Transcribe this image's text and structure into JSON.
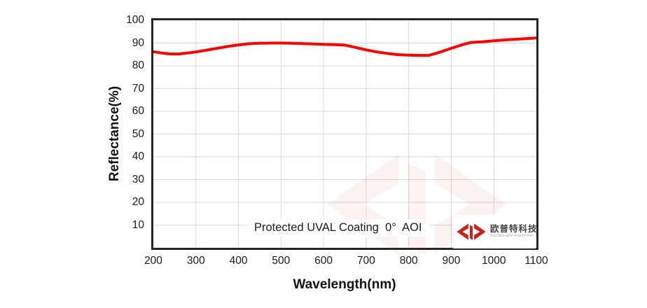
{
  "chart_data": {
    "type": "line",
    "xlabel": "Wavelength(nm)",
    "ylabel": "Reflectance(%)",
    "annotation": "Protected UVAL Coating  0°  AOI",
    "xlim": [
      200,
      1100
    ],
    "ylim": [
      0,
      100
    ],
    "x_ticks": [
      200,
      300,
      400,
      500,
      600,
      700,
      800,
      900,
      1000,
      1100
    ],
    "y_ticks": [
      100,
      90,
      80,
      70,
      60,
      50,
      40,
      30,
      20,
      10
    ],
    "grid": true,
    "legend_position": "none",
    "series": [
      {
        "name": "Reflectance",
        "color": "#fe0000",
        "x": [
          200,
          220,
          240,
          260,
          280,
          300,
          325,
          350,
          375,
          400,
          425,
          450,
          475,
          500,
          525,
          550,
          575,
          600,
          625,
          650,
          675,
          700,
          725,
          750,
          775,
          800,
          825,
          848,
          875,
          900,
          925,
          945,
          975,
          1000,
          1030,
          1060,
          1100
        ],
        "y": [
          86.2,
          85.6,
          85.2,
          85.2,
          85.6,
          86.1,
          86.9,
          87.7,
          88.5,
          89.2,
          89.7,
          89.9,
          90.0,
          90.0,
          89.9,
          89.8,
          89.6,
          89.4,
          89.3,
          89.1,
          88.1,
          87.0,
          86.1,
          85.4,
          84.9,
          84.7,
          84.6,
          84.6,
          86.1,
          87.7,
          89.2,
          90.2,
          90.6,
          91.0,
          91.4,
          91.8,
          92.2
        ]
      }
    ]
  },
  "branding": {
    "logo_cn": "欧普特科技",
    "logo_en": "GOLDEN WAY SCIENTIFIC",
    "logo_icon": "jc-arrows-logo"
  },
  "colors": {
    "curve": "#fe0000",
    "gridline": "#d9d9d9",
    "axis_border": "#262626",
    "tick_text": "#1a1a1a",
    "logo_red": "#c4261d",
    "watermark_red": "#c0392b"
  }
}
